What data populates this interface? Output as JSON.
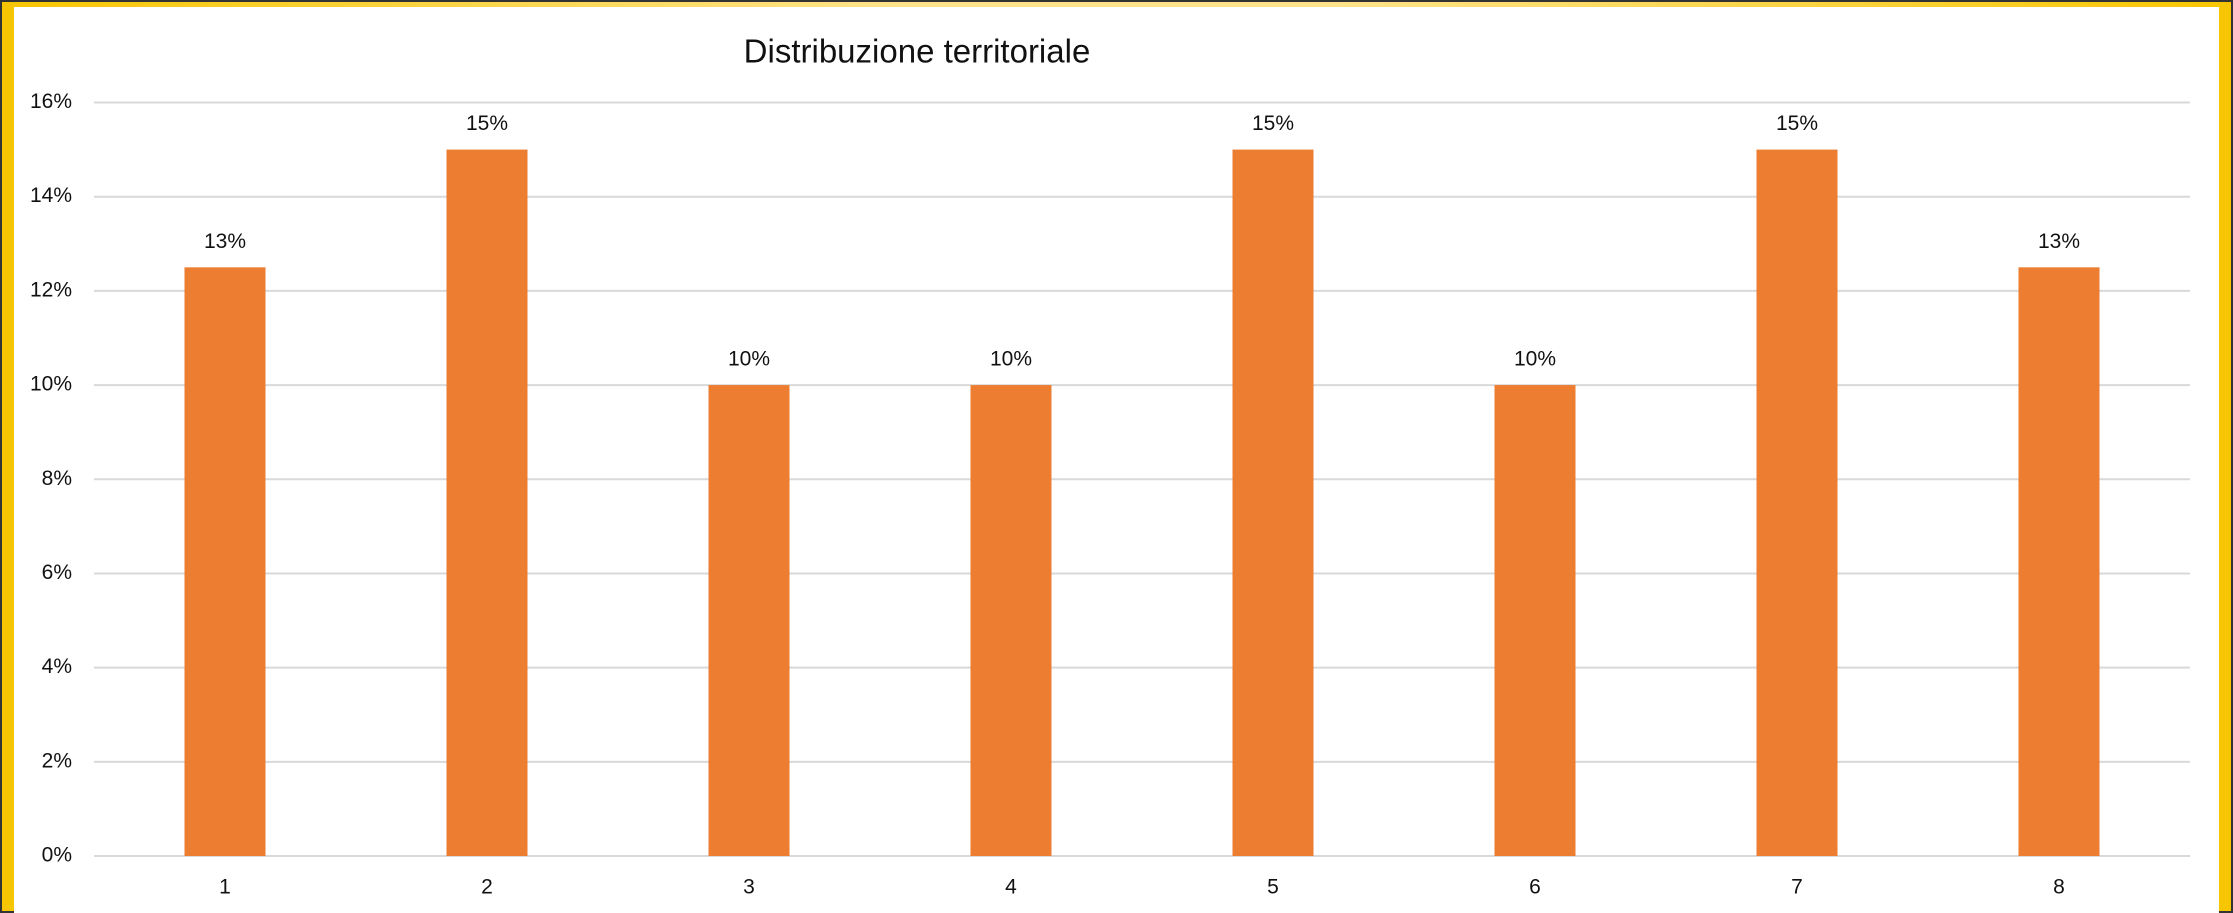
{
  "chart_data": {
    "type": "bar",
    "title": "Distribuzione territoriale",
    "categories": [
      "1",
      "2",
      "3",
      "4",
      "5",
      "6",
      "7",
      "8"
    ],
    "values": [
      12.5,
      15,
      10,
      10,
      15,
      10,
      15,
      12.5
    ],
    "value_labels": [
      "13%",
      "15%",
      "10%",
      "10%",
      "15%",
      "10%",
      "15%",
      "13%"
    ],
    "color": "#ed7d31",
    "ylim": [
      0,
      16
    ],
    "yticks": [
      {
        "value": 0,
        "label": "0%"
      },
      {
        "value": 2,
        "label": "2%"
      },
      {
        "value": 4,
        "label": "4%"
      },
      {
        "value": 6,
        "label": "6%"
      },
      {
        "value": 8,
        "label": "8%"
      },
      {
        "value": 10,
        "label": "10%"
      },
      {
        "value": 12,
        "label": "12%"
      },
      {
        "value": 14,
        "label": "14%"
      },
      {
        "value": 16,
        "label": "16%"
      }
    ],
    "grid": true
  }
}
